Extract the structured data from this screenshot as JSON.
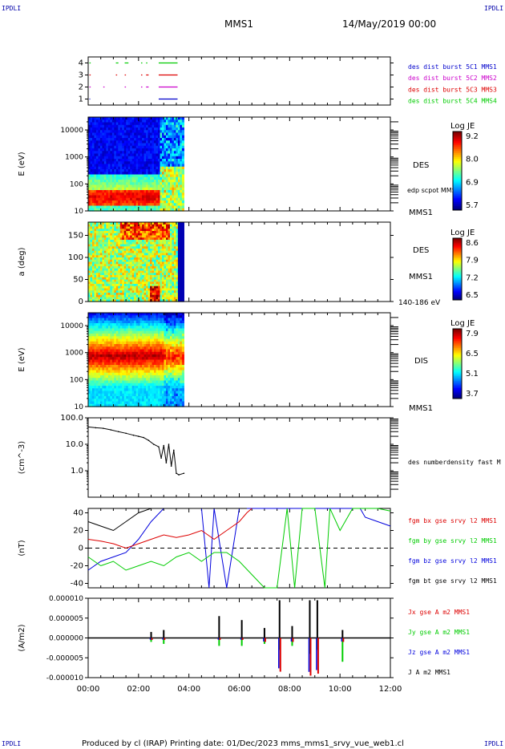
{
  "header": {
    "corner_label": "IPDLI",
    "spacecraft": "MMS1",
    "datetime": "14/May/2019 00:00"
  },
  "footer": {
    "text": "Produced by cl (IRAP)   Printing date: 01/Dec/2023   mms_mms1_srvy_vue_web1.cl"
  },
  "colors": {
    "burst_c1": "#0000cc",
    "burst_c2": "#cc00cc",
    "burst_c3": "#dd0000",
    "burst_c4": "#00cc00",
    "bx": "#dd0000",
    "by": "#00cc00",
    "bz": "#0000dd",
    "bt": "#000000"
  },
  "chart_data": [
    {
      "type": "scatter",
      "panel": "burst",
      "xlim": [
        0,
        12
      ],
      "ylim": [
        0.5,
        4.5
      ],
      "yticks": [
        1,
        2,
        3,
        4
      ],
      "legend": [
        {
          "label": "des dist burst 5C1 MMS1",
          "color": "#0000cc"
        },
        {
          "label": "des dist burst 5C2 MMS2",
          "color": "#cc00cc"
        },
        {
          "label": "des dist burst 5C3 MMS3",
          "color": "#dd0000"
        },
        {
          "label": "des dist burst 5C4 MMS4",
          "color": "#00cc00"
        }
      ],
      "intervals": [
        {
          "level": 4,
          "color": "#00cc00",
          "segments": [
            [
              0.05,
              0.1
            ],
            [
              1.1,
              1.2
            ],
            [
              1.45,
              1.6
            ],
            [
              2.1,
              2.15
            ],
            [
              2.3,
              2.35
            ],
            [
              2.8,
              3.55
            ]
          ]
        },
        {
          "level": 3,
          "color": "#dd0000",
          "segments": [
            [
              0.05,
              0.1
            ],
            [
              1.1,
              1.15
            ],
            [
              1.45,
              1.5
            ],
            [
              2.1,
              2.15
            ],
            [
              2.3,
              2.4
            ],
            [
              2.8,
              3.55
            ]
          ]
        },
        {
          "level": 2,
          "color": "#cc00cc",
          "segments": [
            [
              0.05,
              0.1
            ],
            [
              0.6,
              0.65
            ],
            [
              1.45,
              1.5
            ],
            [
              2.1,
              2.15
            ],
            [
              2.3,
              2.4
            ],
            [
              2.8,
              3.55
            ]
          ]
        },
        {
          "level": 1,
          "color": "#0000cc",
          "segments": [
            [
              0.05,
              0.08
            ],
            [
              2.8,
              3.55
            ]
          ]
        }
      ]
    },
    {
      "type": "heatmap",
      "panel": "des_energy",
      "ylabel": "E (eV)",
      "yscale": "log",
      "ylim": [
        10,
        30000
      ],
      "yticks": [
        "10",
        "100",
        "1000",
        "10000"
      ],
      "xlim": [
        0,
        12
      ],
      "data_range_hours": [
        0,
        3.8
      ],
      "instrument": "DES",
      "spacecraft": "MMS1",
      "annotation": "edp scpot MMS1",
      "colorbar": {
        "title": "Log JE",
        "ticks": [
          "9.2",
          "8.0",
          "6.9",
          "5.7"
        ],
        "min": 5.7,
        "max": 9.2
      }
    },
    {
      "type": "heatmap",
      "panel": "des_pitch",
      "ylabel": "a (deg)",
      "ylim": [
        0,
        180
      ],
      "yticks": [
        "0",
        "50",
        "100",
        "150"
      ],
      "xlim": [
        0,
        12
      ],
      "data_range_hours": [
        0,
        3.8
      ],
      "instrument": "DES",
      "spacecraft": "MMS1",
      "energy_range": "140-186 eV",
      "colorbar": {
        "title": "Log JE",
        "ticks": [
          "8.6",
          "7.9",
          "7.2",
          "6.5"
        ],
        "min": 6.5,
        "max": 8.6
      }
    },
    {
      "type": "heatmap",
      "panel": "dis_energy",
      "ylabel": "E (eV)",
      "yscale": "log",
      "ylim": [
        10,
        30000
      ],
      "yticks": [
        "10",
        "100",
        "1000",
        "10000"
      ],
      "xlim": [
        0,
        12
      ],
      "data_range_hours": [
        0,
        3.8
      ],
      "instrument": "DIS",
      "spacecraft": "MMS1",
      "colorbar": {
        "title": "Log JE",
        "ticks": [
          "7.9",
          "6.5",
          "5.1",
          "3.7"
        ],
        "min": 3.7,
        "max": 7.9
      }
    },
    {
      "type": "line",
      "panel": "density",
      "ylabel": "(cm^-3)",
      "yscale": "log",
      "ylim": [
        0.1,
        100
      ],
      "yticks": [
        "1.0",
        "10.0",
        "100.0"
      ],
      "xlim": [
        0,
        12
      ],
      "series": [
        {
          "name": "des numberdensity fast M",
          "color": "#000000",
          "x": [
            0.0,
            0.3,
            0.6,
            0.9,
            1.2,
            1.5,
            1.8,
            2.0,
            2.2,
            2.4,
            2.6,
            2.8,
            2.9,
            3.0,
            3.1,
            3.2,
            3.3,
            3.4,
            3.5,
            3.6,
            3.8
          ],
          "y": [
            45,
            42,
            40,
            35,
            30,
            26,
            22,
            20,
            18,
            14,
            10,
            8,
            3,
            9,
            2,
            10,
            1.5,
            6,
            0.8,
            0.7,
            0.8
          ]
        }
      ]
    },
    {
      "type": "line",
      "panel": "magnetic_field",
      "ylabel": "(nT)",
      "ylim": [
        -45,
        45
      ],
      "yticks": [
        "-40",
        "-20",
        "0",
        "20",
        "40"
      ],
      "xlim": [
        0,
        12
      ],
      "series": [
        {
          "name": "fgm bx gse srvy l2 MMS1",
          "color": "#dd0000",
          "x": [
            0,
            0.5,
            1.0,
            1.5,
            2.0,
            2.5,
            3.0,
            3.5,
            4.0,
            4.5,
            5.0,
            5.5,
            6.0,
            6.3,
            6.5
          ],
          "y": [
            10,
            8,
            5,
            0,
            5,
            10,
            15,
            12,
            15,
            20,
            10,
            20,
            30,
            40,
            45
          ]
        },
        {
          "name": "fgm by gse srvy l2 MMS1",
          "color": "#00cc00",
          "x": [
            0,
            0.5,
            1.0,
            1.5,
            2.0,
            2.5,
            3.0,
            3.5,
            4.0,
            4.5,
            5.0,
            5.5,
            6.0,
            6.5,
            7.0,
            7.5,
            7.9,
            8.2,
            8.5,
            9.0,
            9.4,
            9.6,
            10.0,
            10.5,
            11.0,
            11.5,
            12.0
          ],
          "y": [
            -10,
            -20,
            -15,
            -25,
            -20,
            -15,
            -20,
            -10,
            -5,
            -15,
            -5,
            -5,
            -15,
            -30,
            -45,
            -45,
            45,
            -45,
            45,
            45,
            -45,
            45,
            20,
            45,
            45,
            45,
            42
          ]
        },
        {
          "name": "fgm bz gse srvy l2 MMS1",
          "color": "#0000dd",
          "x": [
            0,
            0.5,
            1.0,
            1.5,
            2.0,
            2.5,
            3.0,
            3.5,
            4.0,
            4.5,
            4.8,
            5.0,
            5.5,
            6.0,
            6.5,
            10.8,
            11.0,
            11.5,
            12.0
          ],
          "y": [
            -25,
            -15,
            -10,
            -5,
            10,
            30,
            45,
            45,
            45,
            45,
            -45,
            45,
            -45,
            45,
            45,
            45,
            35,
            30,
            25
          ]
        },
        {
          "name": "fgm bt gse srvy l2 MMS1",
          "color": "#000000",
          "x": [
            0,
            0.5,
            1.0,
            1.5,
            2.0,
            2.5,
            3.0,
            3.5,
            4.0,
            4.5,
            5.0,
            5.5,
            6.0,
            6.3
          ],
          "y": [
            30,
            25,
            20,
            30,
            40,
            45,
            45,
            45,
            45,
            45,
            45,
            45,
            45,
            45
          ]
        }
      ]
    },
    {
      "type": "line",
      "panel": "current_density",
      "ylabel": "(A/m2)",
      "ylim": [
        -1e-05,
        1e-05
      ],
      "yticks": [
        "-0.000010",
        "-0.000005",
        "0.000000",
        "0.000005",
        "0.000010"
      ],
      "xlim": [
        0,
        12
      ],
      "xticks": [
        "00:00",
        "02:00",
        "04:00",
        "06:00",
        "08:00",
        "10:00",
        "12:00"
      ],
      "series": [
        {
          "name": "Jx gse A m2 MMS1",
          "color": "#dd0000"
        },
        {
          "name": "Jy gse A m2 MMS1",
          "color": "#00cc00"
        },
        {
          "name": "Jz gse A m2 MMS1",
          "color": "#0000dd"
        },
        {
          "name": "J A m2 MMS1",
          "color": "#000000"
        }
      ],
      "spikes": [
        {
          "t": 2.5,
          "j": 1.5e-06,
          "jx": -5e-07,
          "jy": -1e-06
        },
        {
          "t": 3.0,
          "j": 2e-06,
          "jx": -5e-07,
          "jy": -1.5e-06
        },
        {
          "t": 5.2,
          "j": 5.5e-06,
          "jx": -5e-07,
          "jy": -2e-06
        },
        {
          "t": 6.1,
          "j": 4.5e-06,
          "jx": -5e-07,
          "jy": -2e-06
        },
        {
          "t": 7.0,
          "j": 2.5e-06,
          "jx": -1e-06,
          "jy": -1.5e-06
        },
        {
          "t": 7.6,
          "j": 9.5e-06,
          "jx": -8.5e-06,
          "jy": -3e-06
        },
        {
          "t": 8.1,
          "j": 3e-06,
          "jx": -1e-06,
          "jy": -2e-06
        },
        {
          "t": 8.8,
          "j": 9.5e-06,
          "jx": -9.5e-06,
          "jy": -4e-06
        },
        {
          "t": 9.1,
          "j": 9.5e-06,
          "jx": -9e-06,
          "jy": -3e-06
        },
        {
          "t": 10.1,
          "j": 2e-06,
          "jx": -1e-06,
          "jy": -6e-06
        }
      ]
    }
  ]
}
